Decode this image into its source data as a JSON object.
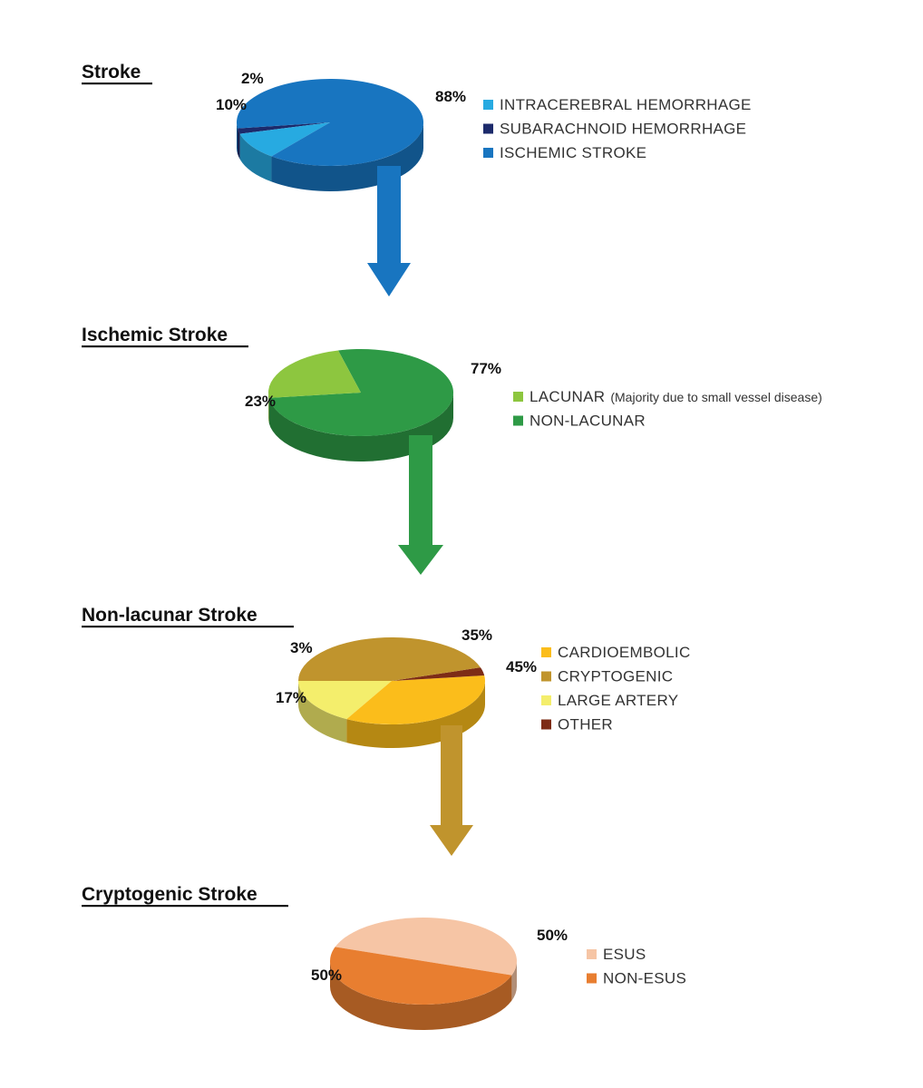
{
  "chart_data": [
    {
      "type": "pie",
      "title": "Stroke",
      "slices": [
        {
          "name": "INTRACEREBRAL HEMORRHAGE",
          "value": 10,
          "label": "10%",
          "color": "#27aae1"
        },
        {
          "name": "SUBARACHNOID HEMORRHAGE",
          "value": 2,
          "label": "2%",
          "color": "#1c2a6b"
        },
        {
          "name": "ISCHEMIC STROKE",
          "value": 88,
          "label": "88%",
          "color": "#1875c0"
        }
      ]
    },
    {
      "type": "pie",
      "title": "Ischemic Stroke",
      "slices": [
        {
          "name": "LACUNAR",
          "note": "(Majority due to small vessel disease)",
          "value": 23,
          "label": "23%",
          "color": "#8dc63f"
        },
        {
          "name": "NON-LACUNAR",
          "value": 77,
          "label": "77%",
          "color": "#2e9a46"
        }
      ]
    },
    {
      "type": "pie",
      "title": "Non-lacunar Stroke",
      "slices": [
        {
          "name": "CARDIOEMBOLIC",
          "value": 35,
          "label": "35%",
          "color": "#fbbd1b"
        },
        {
          "name": "CRYPTOGENIC",
          "value": 45,
          "label": "45%",
          "color": "#c0942d"
        },
        {
          "name": "LARGE ARTERY",
          "value": 17,
          "label": "17%",
          "color": "#f4ee6c"
        },
        {
          "name": "OTHER",
          "value": 3,
          "label": "3%",
          "color": "#7d2c16"
        }
      ]
    },
    {
      "type": "pie",
      "title": "Cryptogenic Stroke",
      "slices": [
        {
          "name": "ESUS",
          "value": 50,
          "label": "50%",
          "color": "#f6c5a5"
        },
        {
          "name": "NON-ESUS",
          "value": 50,
          "label": "50%",
          "color": "#e87e30"
        }
      ]
    }
  ]
}
